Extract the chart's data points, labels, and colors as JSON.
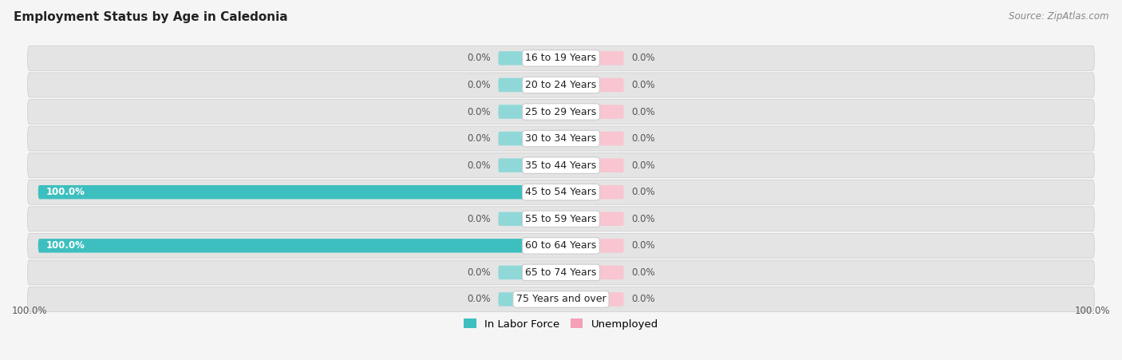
{
  "title": "Employment Status by Age in Caledonia",
  "source_text": "Source: ZipAtlas.com",
  "categories": [
    "16 to 19 Years",
    "20 to 24 Years",
    "25 to 29 Years",
    "30 to 34 Years",
    "35 to 44 Years",
    "45 to 54 Years",
    "55 to 59 Years",
    "60 to 64 Years",
    "65 to 74 Years",
    "75 Years and over"
  ],
  "in_labor_force": [
    0.0,
    0.0,
    0.0,
    0.0,
    0.0,
    100.0,
    0.0,
    100.0,
    0.0,
    0.0
  ],
  "unemployed": [
    0.0,
    0.0,
    0.0,
    0.0,
    0.0,
    0.0,
    0.0,
    0.0,
    0.0,
    0.0
  ],
  "color_labor": "#3dbfbf",
  "color_unemployed": "#f4a0b5",
  "color_labor_stub": "#90d8d8",
  "color_unemployed_stub": "#f8c5d0",
  "row_bg_color": "#e8e8e8",
  "fig_bg_color": "#f5f5f5",
  "axis_range": 100,
  "stub_size": 12,
  "bar_height": 0.52,
  "legend_labor": "In Labor Force",
  "legend_unemployed": "Unemployed",
  "bottom_left_label": "100.0%",
  "bottom_right_label": "100.0%",
  "label_fontsize": 8.5,
  "cat_fontsize": 9.0,
  "title_fontsize": 11,
  "source_fontsize": 8.5
}
